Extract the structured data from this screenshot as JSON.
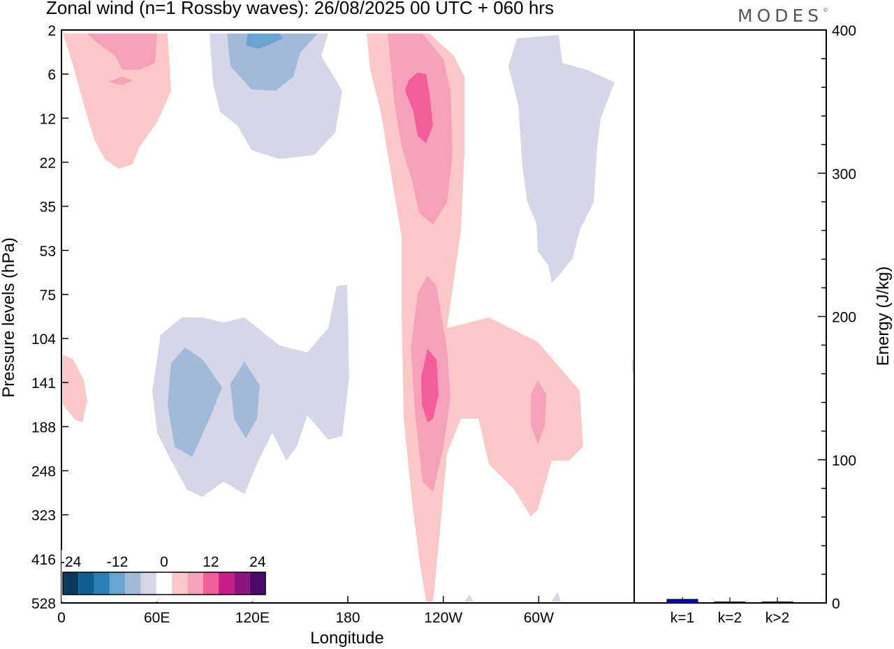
{
  "header": {
    "title": "Zonal wind (n=1 Rossby waves):  26/08/2025  00 UTC  + 060 hrs",
    "brand": "MODES"
  },
  "colors": {
    "scale": [
      "#0b3a5b",
      "#0f5e91",
      "#2c80b8",
      "#6aa3cf",
      "#a3b9d9",
      "#d5d6e8",
      "#ffffff",
      "#fac9c7",
      "#f7a1b8",
      "#f15e9a",
      "#c81e8a",
      "#8c1580",
      "#4d0a6e"
    ],
    "bar": "#0000cc",
    "frame": "#000000"
  },
  "chart_data": [
    {
      "type": "heatmap",
      "title": "Zonal wind (n=1 Rossby waves)",
      "xlabel": "Longitude",
      "ylabel": "Pressure levels (hPa)",
      "x_ticks": [
        "0",
        "60E",
        "120E",
        "180",
        "120W",
        "60W"
      ],
      "x_tick_values": [
        0,
        60,
        120,
        180,
        240,
        300
      ],
      "xlim": [
        0,
        360
      ],
      "y_ticks": [
        "2",
        "6",
        "12",
        "22",
        "35",
        "53",
        "75",
        "104",
        "141",
        "188",
        "248",
        "323",
        "416",
        "528"
      ],
      "colorbar": {
        "labels": [
          "-24",
          "-12",
          "0",
          "12",
          "24"
        ],
        "levels": [
          -24,
          -20,
          -16,
          -12,
          -8,
          -4,
          0,
          4,
          8,
          12,
          16,
          20,
          24
        ]
      },
      "features": [
        {
          "name": "upper-stratosphere westerly",
          "lon": 35,
          "level": "6",
          "value": 8
        },
        {
          "name": "upper-stratosphere easterly",
          "lon": 120,
          "level": "2",
          "value": -12
        },
        {
          "name": "stratospheric westerly jet",
          "lon": 230,
          "level": "12",
          "value": 16
        },
        {
          "name": "upper-troposphere westerly",
          "lon": 230,
          "level": "141",
          "value": 16
        },
        {
          "name": "tropospheric easterly",
          "lon": 90,
          "level": "141",
          "value": -8
        },
        {
          "name": "tropospheric easterly 2",
          "lon": 115,
          "level": "141",
          "value": -8
        },
        {
          "name": "westerly 60W",
          "lon": 300,
          "level": "141",
          "value": 8
        },
        {
          "name": "easterly 60W stratosphere",
          "lon": 310,
          "level": "12",
          "value": -4
        }
      ]
    },
    {
      "type": "bar",
      "categories": [
        "k=1",
        "k=2",
        "k>2"
      ],
      "values": [
        2.5,
        0.3,
        0.5
      ],
      "ylabel": "Energy (J/kg)",
      "ylim": [
        0,
        400
      ],
      "y_ticks": [
        "0",
        "100",
        "200",
        "300",
        "400"
      ],
      "y_tick_values": [
        0,
        100,
        200,
        300,
        400
      ]
    }
  ]
}
